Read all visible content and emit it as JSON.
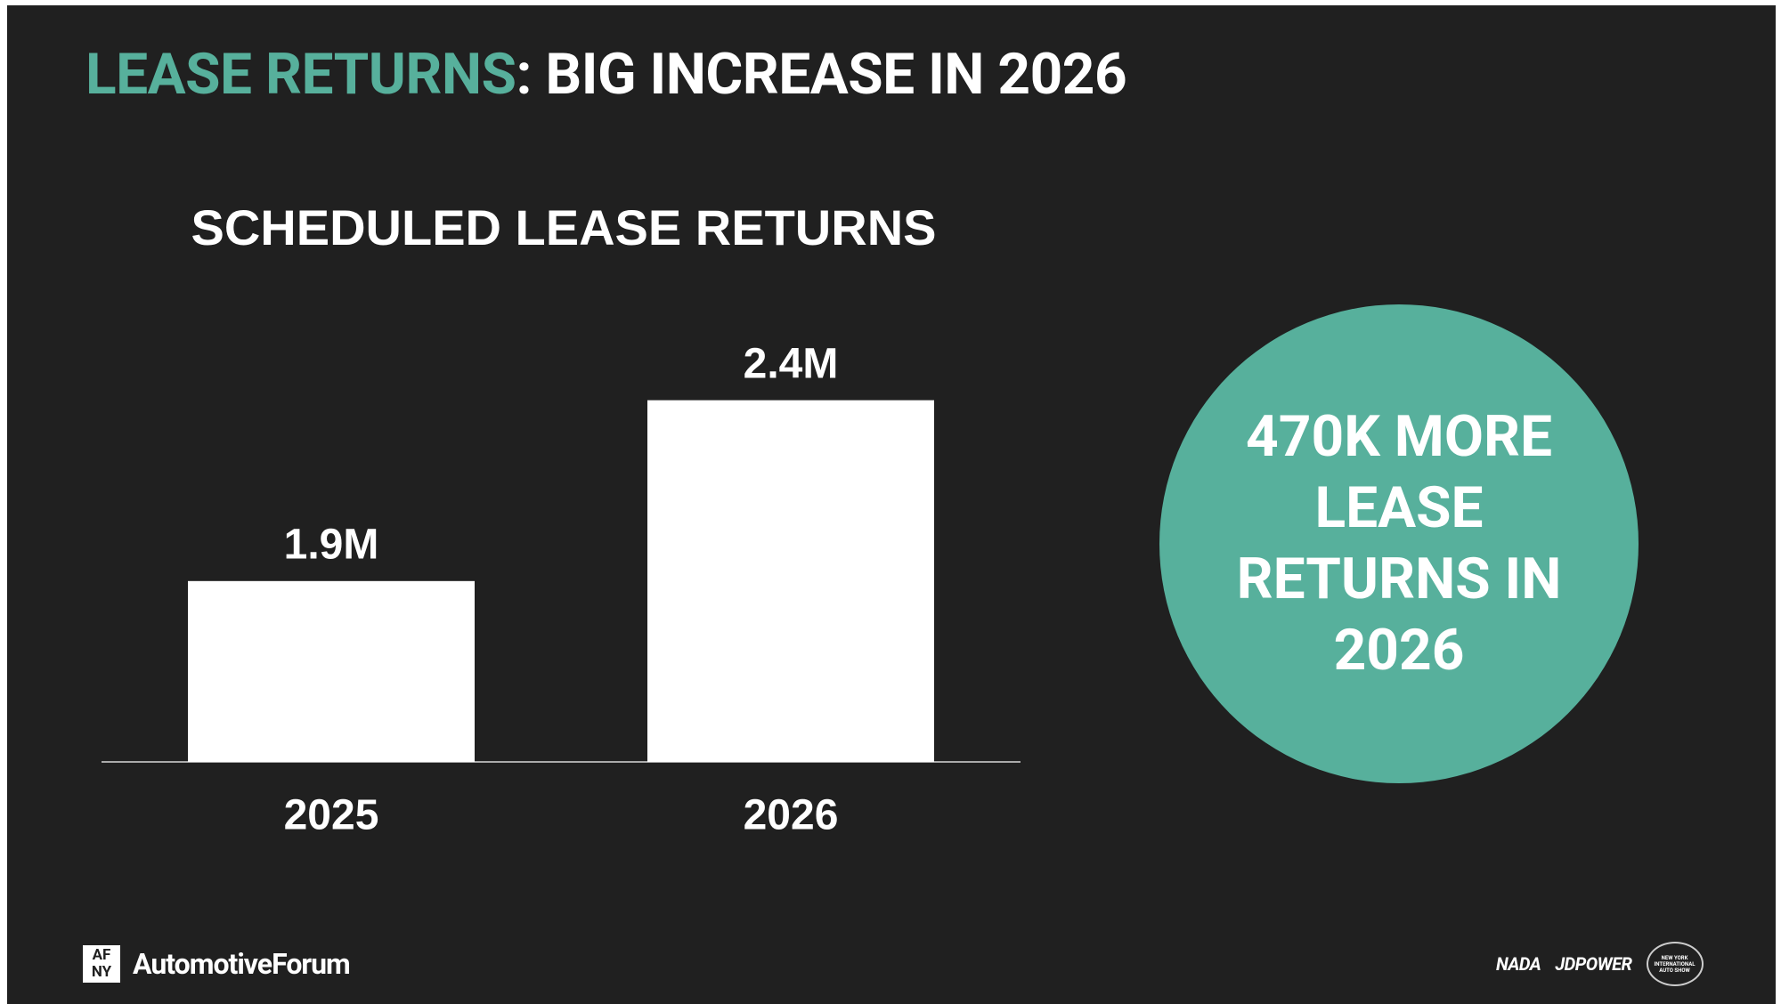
{
  "header": {
    "title_highlight": "LEASE RETURNS",
    "title_rest": ": BIG INCREASE IN 2026"
  },
  "chart_data": {
    "type": "bar",
    "title": "SCHEDULED LEASE RETURNS",
    "categories": [
      "2025",
      "2026"
    ],
    "values": [
      1.9,
      2.4
    ],
    "value_labels": [
      "1.9M",
      "2.4M"
    ],
    "color": "#ffffff",
    "ylim": [
      1.4,
      2.5
    ]
  },
  "callout": "470K MORE LEASE RETURNS IN 2026",
  "footer": {
    "logo_mark_top": "AF",
    "logo_mark_bottom": "NY",
    "logo_text": "AutomotiveForum",
    "sponsors": [
      "NADA",
      "JDPOWER"
    ],
    "autoshow": [
      "NEW YORK",
      "INTERNATIONAL",
      "AUTO SHOW"
    ]
  }
}
